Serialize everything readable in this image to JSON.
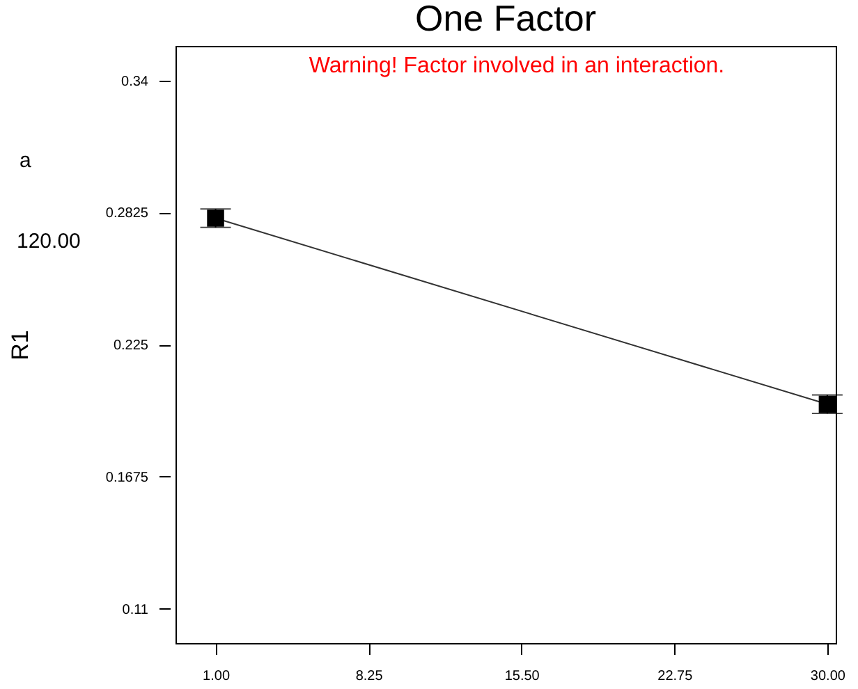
{
  "chart_data": {
    "type": "line",
    "title": "One Factor",
    "ylabel": "R1",
    "annotations": [
      "Warning! Factor involved in an interaction.",
      "a",
      "120.00"
    ],
    "x": [
      1,
      30
    ],
    "series": [
      {
        "color": "#000000",
        "values": [
          0.28,
          0.199
        ],
        "errors": [
          0.004,
          0.004
        ]
      }
    ],
    "xlim": [
      -0.9,
      30.4
    ],
    "ylim": [
      0.095,
      0.355
    ],
    "xticks": [
      {
        "value": 1,
        "label": "1.00"
      },
      {
        "value": 8.25,
        "label": "8.25"
      },
      {
        "value": 15.5,
        "label": "15.50"
      },
      {
        "value": 22.75,
        "label": "22.75"
      },
      {
        "value": 30,
        "label": "30.00"
      }
    ],
    "yticks": [
      0.11,
      0.1675,
      0.225,
      0.2825,
      0.34
    ],
    "grid": false,
    "marker": "square"
  }
}
